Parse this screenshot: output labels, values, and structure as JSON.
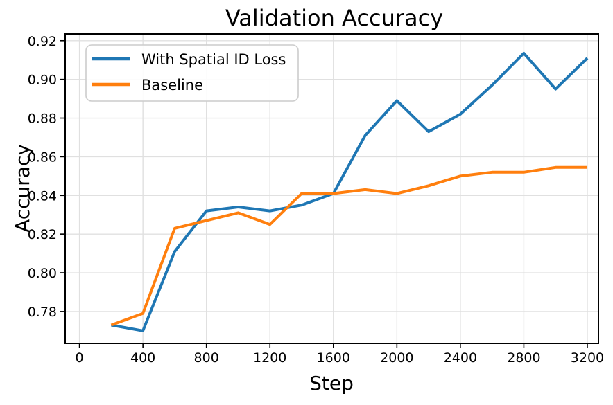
{
  "chart_data": {
    "type": "line",
    "title": "Validation Accuracy",
    "xlabel": "Step",
    "ylabel": "Accuracy",
    "x": [
      200,
      400,
      600,
      800,
      1000,
      1200,
      1400,
      1600,
      1800,
      2000,
      2200,
      2400,
      2600,
      2800,
      3000,
      3200
    ],
    "series": [
      {
        "name": "With Spatial ID Loss",
        "color": "#1f77b4",
        "values": [
          0.773,
          0.77,
          0.811,
          0.832,
          0.834,
          0.832,
          0.835,
          0.841,
          0.871,
          0.889,
          0.873,
          0.882,
          0.897,
          0.9135,
          0.895,
          0.911
        ]
      },
      {
        "name": "Baseline",
        "color": "#ff7f0e",
        "values": [
          0.773,
          0.779,
          0.823,
          0.827,
          0.831,
          0.825,
          0.841,
          0.841,
          0.843,
          0.841,
          0.845,
          0.85,
          0.852,
          0.852,
          0.8545,
          0.8545
        ]
      }
    ],
    "xticks": [
      0,
      400,
      800,
      1200,
      1600,
      2000,
      2400,
      2800,
      3200
    ],
    "xtick_labels": [
      "0",
      "400",
      "800",
      "1200",
      "1600",
      "2000",
      "2400",
      "2800",
      "3200"
    ],
    "yticks": [
      0.78,
      0.8,
      0.82,
      0.84,
      0.86,
      0.88,
      0.9,
      0.92
    ],
    "ytick_labels": [
      "0.78",
      "0.80",
      "0.82",
      "0.84",
      "0.86",
      "0.88",
      "0.90",
      "0.92"
    ],
    "xlim": [
      -90,
      3270
    ],
    "ylim": [
      0.7635,
      0.9235
    ],
    "grid": true,
    "legend_position": "upper left",
    "background": "#ffffff"
  }
}
